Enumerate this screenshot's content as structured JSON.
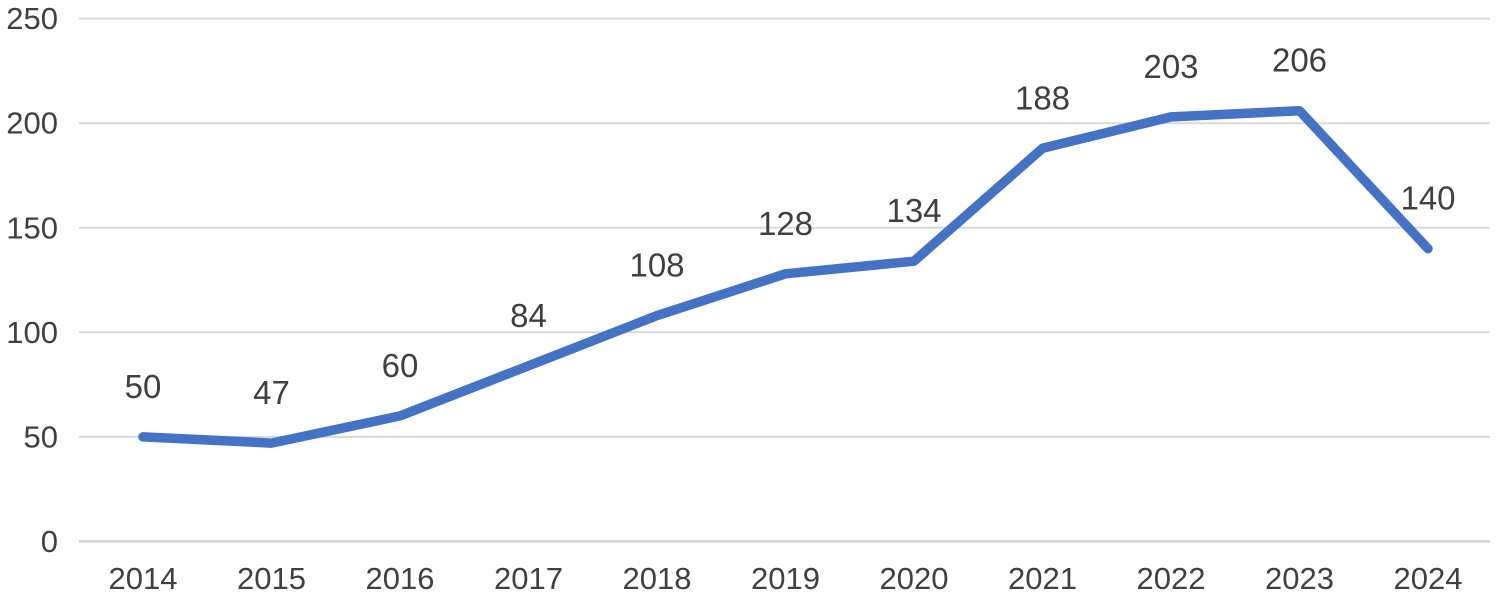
{
  "chart_data": {
    "type": "line",
    "title": "",
    "xlabel": "",
    "ylabel": "",
    "categories": [
      "2014",
      "2015",
      "2016",
      "2017",
      "2018",
      "2019",
      "2020",
      "2021",
      "2022",
      "2023",
      "2024"
    ],
    "series": [
      {
        "name": "values",
        "values": [
          50,
          47,
          60,
          84,
          108,
          128,
          134,
          188,
          203,
          206,
          140
        ],
        "data_labels": [
          "50",
          "47",
          "60",
          "84",
          "108",
          "128",
          "134",
          "188",
          "203",
          "206",
          "140"
        ],
        "color": "#4472C4"
      }
    ],
    "ylim": [
      0,
      250
    ],
    "y_ticks": [
      0,
      50,
      100,
      150,
      200,
      250
    ],
    "y_tick_labels": [
      "0",
      "50",
      "100",
      "150",
      "200",
      "250"
    ],
    "grid": true,
    "legend_position": "none",
    "colors": {
      "line": "#4472C4",
      "text": "#404040",
      "gridline": "#D9D9D9",
      "zero_line": "#D0D0D0",
      "background": "#FFFFFF"
    }
  }
}
